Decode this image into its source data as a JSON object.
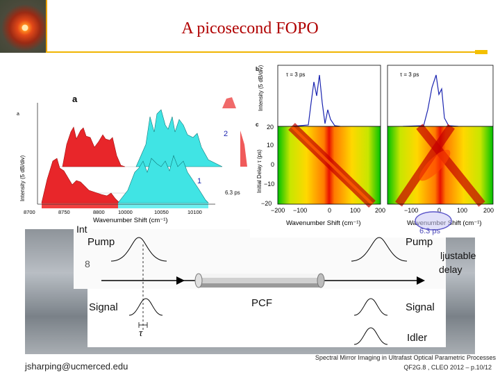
{
  "slide": {
    "title": "A picosecond FOPO",
    "footer_email": "jsharping@ucmerced.edu",
    "footer_title": "Spectral Mirror Imaging in Ultrafast Optical Parametric Processes",
    "footer_session": "QF2G.8 , CLEO 2012 – p.10/12"
  },
  "panel_a": {
    "letter": "a",
    "small_letter": "a",
    "ylabel": "Intensity (5 dB/div)",
    "xlabel": "Wavenumber Shift (cm⁻¹)",
    "ticks_red": [
      "8700",
      "8750",
      "8800"
    ],
    "ticks_cyan": [
      "10000",
      "10050",
      "10100"
    ],
    "trace_label_1": "1",
    "trace_label_2": "2",
    "delay_label": "6.3 ps"
  },
  "panel_b": {
    "letter": "b",
    "ylabel": "Intensity (5 dB/div)",
    "tau_left": "τ = 3 ps",
    "tau_right": "τ = 3 ps"
  },
  "panel_c": {
    "letter": "c",
    "ylabel": "Initial Delay τ (ps)",
    "yticks": [
      "20",
      "10",
      "0",
      "−10",
      "−20"
    ],
    "xticks_left": [
      "−200",
      "−100",
      "0",
      "100",
      "200"
    ],
    "xticks_right": [
      "−100",
      "0",
      "100",
      "200"
    ],
    "xlabel_left": "Wavenumber Shift (cm⁻¹)",
    "xlabel_right": "Wavenumber Shift (cm⁻¹)",
    "bubble_text": "6.3 ps"
  },
  "schematic": {
    "int_label": "Int",
    "pump_left": "Pump",
    "pump_right": "Pump",
    "signal_left": "Signal",
    "signal_right": "Signal",
    "idler_right": "Idler",
    "fiber_label": "PCF",
    "tau_symbol": "τ",
    "adjustable": "ljustable",
    "delay": "delay",
    "clipped_glyph": "8"
  },
  "colors": {
    "title": "#b00000",
    "accent_rule": "#f0b400",
    "red_spectrum": "#e8262a",
    "cyan_spectrum": "#40e4e4",
    "trace_blue": "#1a24b0"
  }
}
